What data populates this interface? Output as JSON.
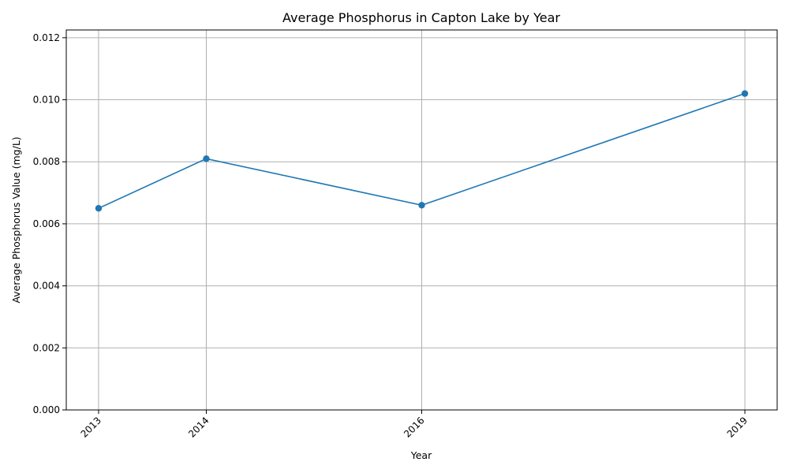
{
  "chart_data": {
    "type": "line",
    "title": "Average Phosphorus in Capton Lake by Year",
    "xlabel": "Year",
    "ylabel": "Average Phosphorus Value (mg/L)",
    "x": [
      2013,
      2014,
      2016,
      2019
    ],
    "x_tick_labels": [
      "2013",
      "2014",
      "2016",
      "2019"
    ],
    "xlim": [
      2012.7,
      2019.3
    ],
    "ylim": [
      0,
      0.01225
    ],
    "y_ticks": [
      0,
      0.002,
      0.004,
      0.006,
      0.008,
      0.01,
      0.012
    ],
    "y_tick_labels": [
      "0.000",
      "0.002",
      "0.004",
      "0.006",
      "0.008",
      "0.010",
      "0.012"
    ],
    "series": [
      {
        "values": [
          0.0065,
          0.0081,
          0.0066,
          0.0102
        ],
        "color": "#1f77b4",
        "marker": "circle"
      }
    ],
    "grid": true,
    "legend": "none"
  }
}
